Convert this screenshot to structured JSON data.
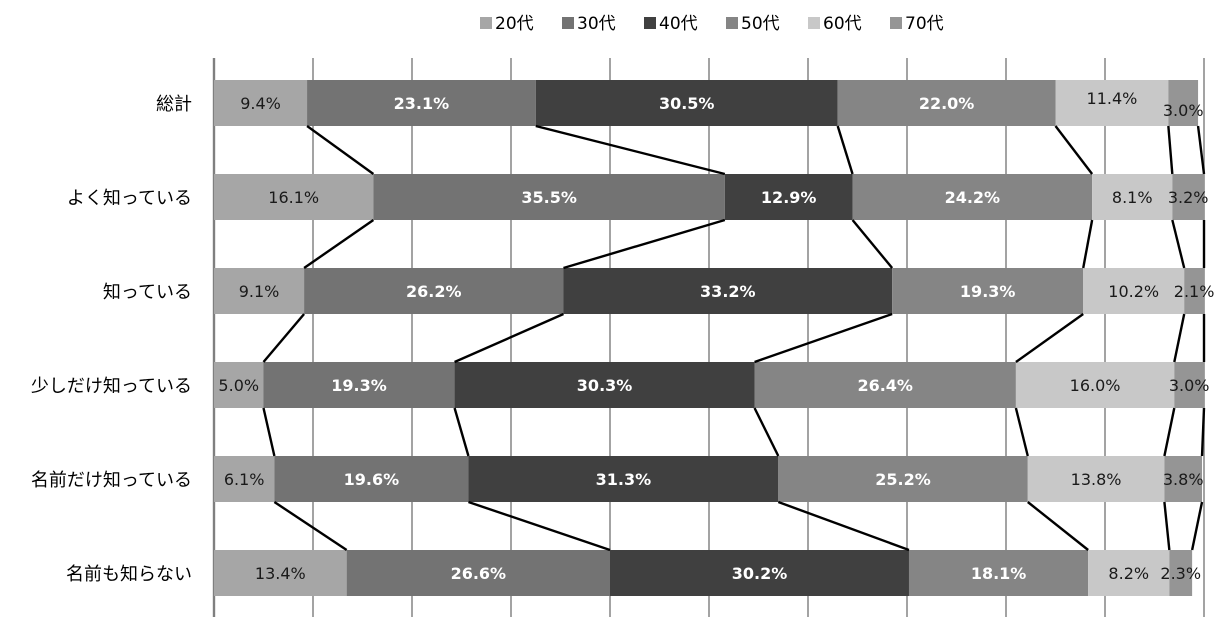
{
  "chart_data": {
    "type": "bar",
    "stacked": true,
    "orientation": "horizontal",
    "percent_stacked": true,
    "xlim": [
      0,
      100
    ],
    "grid": true,
    "legend_position": "top",
    "categories": [
      "総計",
      "よく知っている",
      "知っている",
      "少しだけ知っている",
      "名前だけ知っている",
      "名前も知らない"
    ],
    "series": [
      {
        "name": "20代",
        "color": "#a6a6a6",
        "label_color": "#1a1a1a",
        "values": [
          9.4,
          16.1,
          9.1,
          5.0,
          6.1,
          13.4
        ],
        "labels": [
          "9.4%",
          "16.1%",
          "9.1%",
          "5.0%",
          "6.1%",
          "13.4%"
        ]
      },
      {
        "name": "30代",
        "color": "#737373",
        "label_color": "#ffffff",
        "values": [
          23.1,
          35.5,
          26.2,
          19.3,
          19.6,
          26.6
        ],
        "labels": [
          "23.1%",
          "35.5%",
          "26.2%",
          "19.3%",
          "19.6%",
          "26.6%"
        ]
      },
      {
        "name": "40代",
        "color": "#404040",
        "label_color": "#ffffff",
        "values": [
          30.5,
          12.9,
          33.2,
          30.3,
          31.3,
          30.2
        ],
        "labels": [
          "30.5%",
          "12.9%",
          "33.2%",
          "30.3%",
          "31.3%",
          "30.2%"
        ]
      },
      {
        "name": "50代",
        "color": "#858585",
        "label_color": "#ffffff",
        "values": [
          22.0,
          24.2,
          19.3,
          26.4,
          25.2,
          18.1
        ],
        "labels": [
          "22.0%",
          "24.2%",
          "19.3%",
          "26.4%",
          "25.2%",
          "18.1%"
        ]
      },
      {
        "name": "60代",
        "color": "#c8c8c8",
        "label_color": "#1a1a1a",
        "values": [
          11.4,
          8.1,
          10.2,
          16.0,
          13.8,
          8.2
        ],
        "labels": [
          "11.4%",
          "8.1%",
          "10.2%",
          "16.0%",
          "13.8%",
          "8.2%"
        ]
      },
      {
        "name": "70代",
        "color": "#959595",
        "label_color": "#1a1a1a",
        "values": [
          3.0,
          3.2,
          2.1,
          3.0,
          3.8,
          2.3
        ],
        "labels": [
          "3.0%",
          "3.2%",
          "2.1%",
          "3.0%",
          "3.8%",
          "2.3%"
        ]
      }
    ]
  }
}
